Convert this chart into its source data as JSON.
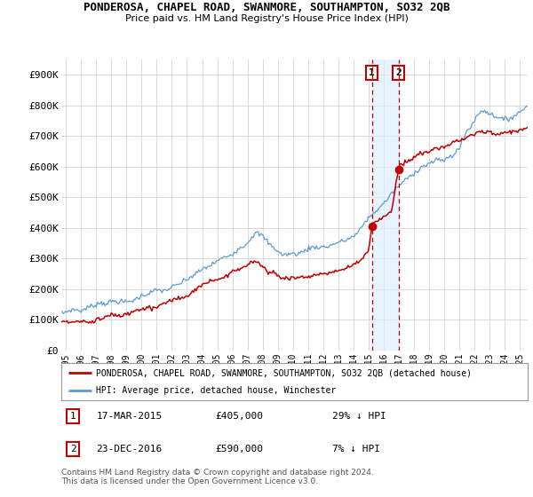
{
  "title": "PONDEROSA, CHAPEL ROAD, SWANMORE, SOUTHAMPTON, SO32 2QB",
  "subtitle": "Price paid vs. HM Land Registry's House Price Index (HPI)",
  "ylabel_ticks": [
    "£0",
    "£100K",
    "£200K",
    "£300K",
    "£400K",
    "£500K",
    "£600K",
    "£700K",
    "£800K",
    "£900K"
  ],
  "ytick_vals": [
    0,
    100000,
    200000,
    300000,
    400000,
    500000,
    600000,
    700000,
    800000,
    900000
  ],
  "ylim": [
    0,
    950000
  ],
  "xlim_start": 1994.7,
  "xlim_end": 2025.5,
  "xticks": [
    1995,
    1996,
    1997,
    1998,
    1999,
    2000,
    2001,
    2002,
    2003,
    2004,
    2005,
    2006,
    2007,
    2008,
    2009,
    2010,
    2011,
    2012,
    2013,
    2014,
    2015,
    2016,
    2017,
    2018,
    2019,
    2020,
    2021,
    2022,
    2023,
    2024,
    2025
  ],
  "xtick_labels": [
    "1995",
    "1996",
    "1997",
    "1998",
    "1999",
    "2000",
    "2001",
    "2002",
    "2003",
    "2004",
    "2005",
    "2006",
    "2007",
    "2008",
    "2009",
    "2010",
    "2011",
    "2012",
    "2013",
    "2014",
    "2015",
    "2016",
    "2017",
    "2018",
    "2019",
    "2020",
    "2021",
    "2022",
    "2023",
    "2024",
    "2025"
  ],
  "hpi_color": "#5b9bd5",
  "price_color": "#c00000",
  "vline_color": "#c00000",
  "shade_color": "#ddeeff",
  "legend_box_color": "#c00000",
  "sale1_x": 2015.21,
  "sale1_y": 405000,
  "sale1_label": "1",
  "sale2_x": 2016.98,
  "sale2_y": 590000,
  "sale2_label": "2",
  "legend1_text": "PONDEROSA, CHAPEL ROAD, SWANMORE, SOUTHAMPTON, SO32 2QB (detached house)",
  "legend2_text": "HPI: Average price, detached house, Winchester",
  "note1_date": "17-MAR-2015",
  "note1_price": "£405,000",
  "note1_hpi": "29% ↓ HPI",
  "note2_date": "23-DEC-2016",
  "note2_price": "£590,000",
  "note2_hpi": "7% ↓ HPI",
  "footer": "Contains HM Land Registry data © Crown copyright and database right 2024.\nThis data is licensed under the Open Government Licence v3.0.",
  "background_color": "#ffffff",
  "grid_color": "#cccccc"
}
